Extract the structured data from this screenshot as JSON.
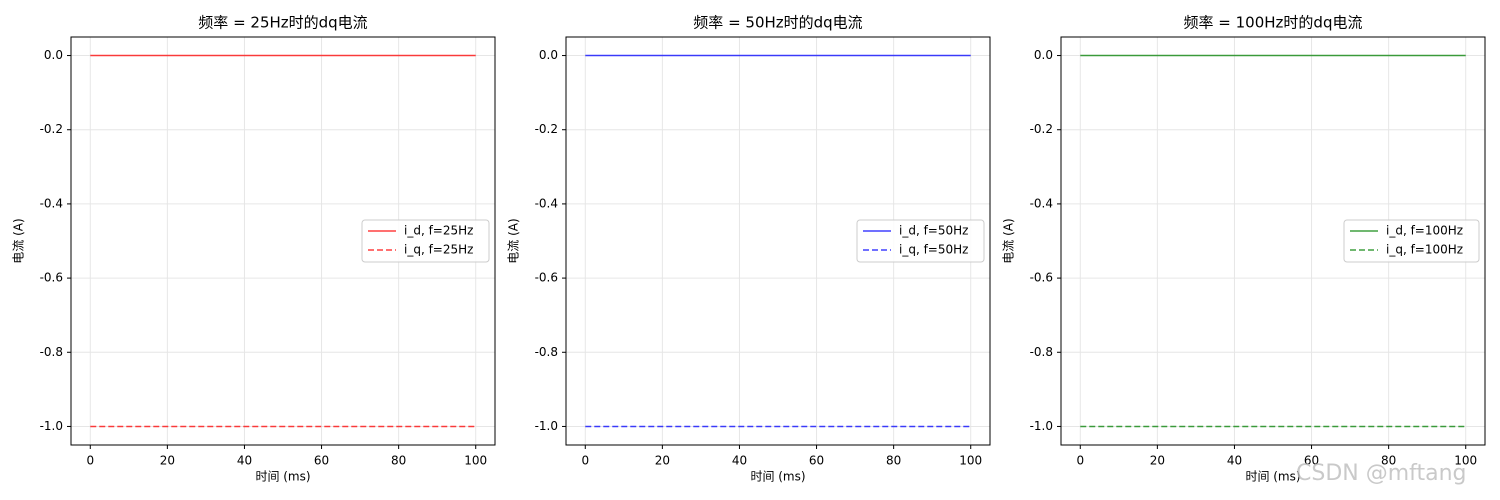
{
  "chart_data": [
    {
      "type": "line",
      "title": "频率 = 25Hz时的dq电流",
      "x_label": "时间 (ms)",
      "y_label": "电流 (A)",
      "x": [
        0,
        100
      ],
      "series": [
        {
          "name": "i_d, f=25Hz",
          "color": "red",
          "dash": false,
          "values": [
            0,
            0
          ]
        },
        {
          "name": "i_q, f=25Hz",
          "color": "red",
          "dash": true,
          "values": [
            -1,
            -1
          ]
        }
      ],
      "xlim": [
        -5,
        105
      ],
      "xticks": [
        0,
        20,
        40,
        60,
        80,
        100
      ],
      "ylim": [
        -1.05,
        0.05
      ],
      "yticks": [
        {
          "value": 0,
          "label": "0.0"
        },
        -0.2,
        -0.4,
        -0.6,
        -0.8,
        {
          "value": -1,
          "label": "-1.0"
        }
      ],
      "grid": true,
      "legend": "center right"
    },
    {
      "type": "line",
      "title": "频率 = 50Hz时的dq电流",
      "x_label": "时间 (ms)",
      "y_label": "电流 (A)",
      "x": [
        0,
        100
      ],
      "series": [
        {
          "name": "i_d, f=50Hz",
          "color": "blue",
          "dash": false,
          "values": [
            0,
            0
          ]
        },
        {
          "name": "i_q, f=50Hz",
          "color": "blue",
          "dash": true,
          "values": [
            -1,
            -1
          ]
        }
      ],
      "xlim": [
        -5,
        105
      ],
      "xticks": [
        0,
        20,
        40,
        60,
        80,
        100
      ],
      "ylim": [
        -1.05,
        0.05
      ],
      "yticks": [
        {
          "value": 0,
          "label": "0.0"
        },
        -0.2,
        -0.4,
        -0.6,
        -0.8,
        {
          "value": -1,
          "label": "-1.0"
        }
      ],
      "grid": true,
      "legend": "center right"
    },
    {
      "type": "line",
      "title": "频率 = 100Hz时的dq电流",
      "x_label": "时间 (ms)",
      "y_label": "电流 (A)",
      "x": [
        0,
        100
      ],
      "series": [
        {
          "name": "i_d, f=100Hz",
          "color": "green",
          "dash": false,
          "values": [
            0,
            0
          ]
        },
        {
          "name": "i_q, f=100Hz",
          "color": "green",
          "dash": true,
          "values": [
            -1,
            -1
          ]
        }
      ],
      "xlim": [
        -5,
        105
      ],
      "xticks": [
        0,
        20,
        40,
        60,
        80,
        100
      ],
      "ylim": [
        -1.05,
        0.05
      ],
      "yticks": [
        {
          "value": 0,
          "label": "0.0"
        },
        -0.2,
        -0.4,
        -0.6,
        -0.8,
        {
          "value": -1,
          "label": "-1.0"
        }
      ],
      "grid": true,
      "legend": "center right"
    }
  ],
  "watermark": "CSDN @mftang"
}
